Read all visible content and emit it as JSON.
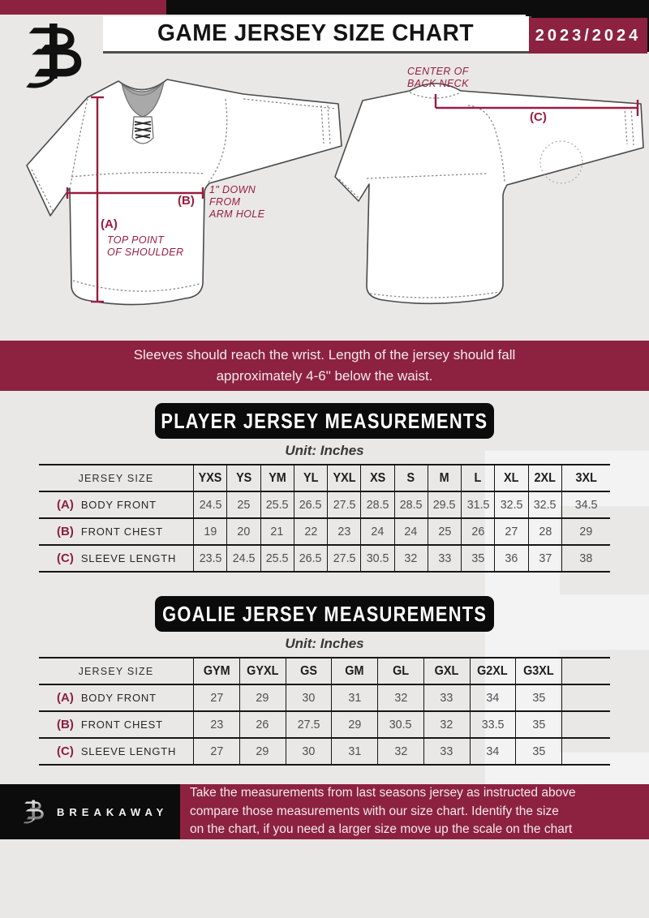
{
  "colors": {
    "maroon": "#8C2240",
    "black": "#0d0d0d",
    "page_bg": "#e9e8e7",
    "annotation": "#9b1c40"
  },
  "header": {
    "title": "GAME JERSEY SIZE CHART",
    "season": "2023/2024"
  },
  "diagram": {
    "front": {
      "a_key": "(A)",
      "a_desc": "TOP POINT\nOF SHOULDER",
      "b_key": "(B)",
      "b_desc": "1\" DOWN\nFROM\nARM HOLE"
    },
    "back": {
      "c_key": "(C)",
      "c_desc": "CENTER OF\nBACK NECK"
    }
  },
  "notice": {
    "line1": "Sleeves should reach the wrist. Length of the jersey should fall",
    "line2": "approximately 4-6\" below the waist."
  },
  "player_table": {
    "heading": "PLAYER JERSEY MEASUREMENTS",
    "unit": "Unit: Inches",
    "size_label": "JERSEY SIZE",
    "columns": [
      "YXS",
      "YS",
      "YM",
      "YL",
      "YXL",
      "XS",
      "S",
      "M",
      "L",
      "XL",
      "2XL",
      "3XL"
    ],
    "trailing_blank": false,
    "rows": [
      {
        "key": "(A)",
        "label": "BODY FRONT",
        "values": [
          "24.5",
          "25",
          "25.5",
          "26.5",
          "27.5",
          "28.5",
          "28.5",
          "29.5",
          "31.5",
          "32.5",
          "32.5",
          "34.5"
        ]
      },
      {
        "key": "(B)",
        "label": "FRONT CHEST",
        "values": [
          "19",
          "20",
          "21",
          "22",
          "23",
          "24",
          "24",
          "25",
          "26",
          "27",
          "28",
          "29"
        ]
      },
      {
        "key": "(C)",
        "label": "SLEEVE LENGTH",
        "values": [
          "23.5",
          "24.5",
          "25.5",
          "26.5",
          "27.5",
          "30.5",
          "32",
          "33",
          "35",
          "36",
          "37",
          "38"
        ]
      }
    ]
  },
  "goalie_table": {
    "heading": "GOALIE JERSEY MEASUREMENTS",
    "unit": "Unit: Inches",
    "size_label": "JERSEY SIZE",
    "columns": [
      "GYM",
      "GYXL",
      "GS",
      "GM",
      "GL",
      "GXL",
      "G2XL",
      "G3XL"
    ],
    "trailing_blank": true,
    "rows": [
      {
        "key": "(A)",
        "label": "BODY FRONT",
        "values": [
          "27",
          "29",
          "30",
          "31",
          "32",
          "33",
          "34",
          "35"
        ]
      },
      {
        "key": "(B)",
        "label": "FRONT CHEST",
        "values": [
          "23",
          "26",
          "27.5",
          "29",
          "30.5",
          "32",
          "33.5",
          "35"
        ]
      },
      {
        "key": "(C)",
        "label": "SLEEVE LENGTH",
        "values": [
          "27",
          "29",
          "30",
          "31",
          "32",
          "33",
          "34",
          "35"
        ]
      }
    ]
  },
  "footer": {
    "brand": "BREAKAWAY",
    "note": "Take the measurements from last seasons jersey as instructed above\ncompare those measurements  with our size chart. Identify the size\non the chart, if you need a larger size move up the scale on the chart"
  }
}
